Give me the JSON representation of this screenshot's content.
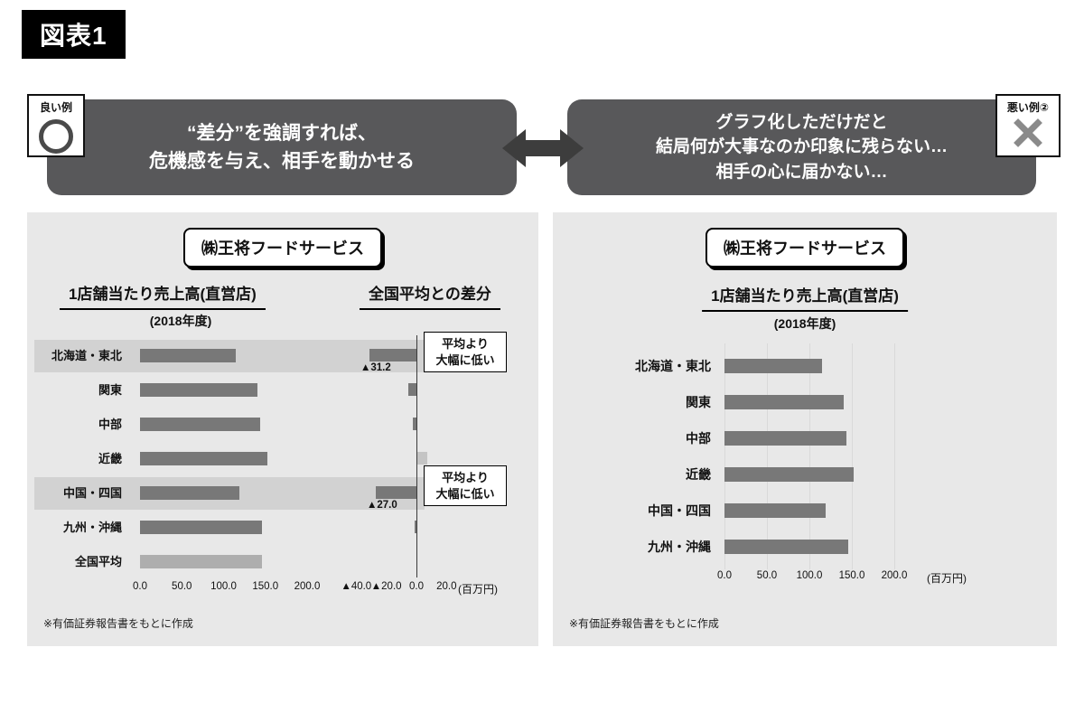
{
  "figure_label": "図表1",
  "colors": {
    "bubble_bg": "#58585a",
    "panel_bg": "#e8e8e8",
    "bar_dark": "#787878",
    "bar_light": "#aeaeae",
    "diff_positive_bar": "#c4c4c4",
    "highlight_band": "#d2d2d2",
    "arrow": "#3d3d3d"
  },
  "good_example": {
    "badge_label": "良い例",
    "icon": "circle-icon",
    "lines": [
      "“差分”を強調すれば、",
      "危機感を与え、相手を動かせる"
    ]
  },
  "bad_example": {
    "badge_label": "悪い例②",
    "icon": "x-icon",
    "lines": [
      "グラフ化しただけだと",
      "結局何が大事なのか印象に残らない…",
      "相手の心に届かない…"
    ]
  },
  "left_panel": {
    "company": "㈱王将フードサービス",
    "sales_title": "1店舗当たり売上高(直営店)",
    "sales_subtitle": "(2018年度)",
    "diff_title": "全国平均との差分",
    "callout_top": "平均より\n大幅に低い",
    "callout_bottom": "平均より\n大幅に低い",
    "footnote": "※有価証券報告書をもとに作成"
  },
  "right_panel": {
    "company": "㈱王将フードサービス",
    "sales_title": "1店舗当たり売上高(直営店)",
    "sales_subtitle": "(2018年度)",
    "footnote": "※有価証券報告書をもとに作成"
  },
  "chart_data": [
    {
      "id": "left-sales-per-store",
      "type": "bar",
      "orientation": "horizontal",
      "title": "1店舗当たり売上高(直営店) (2018年度)",
      "categories": [
        "北海道・東北",
        "関東",
        "中部",
        "近畿",
        "中国・四国",
        "九州・沖縄",
        "全国平均"
      ],
      "values": [
        114.8,
        140.5,
        143.5,
        152.5,
        119.0,
        145.5,
        146.0
      ],
      "xlim": [
        0,
        200
      ],
      "ticks": [
        "0.0",
        "50.0",
        "100.0",
        "150.0",
        "200.0"
      ],
      "highlight_rows": [
        0,
        4
      ],
      "light_rows": [
        6
      ],
      "legend": "none",
      "grid": false
    },
    {
      "id": "left-diff-from-national-average",
      "type": "bar",
      "orientation": "horizontal",
      "title": "全国平均との差分",
      "categories": [
        "北海道・東北",
        "関東",
        "中部",
        "近畿",
        "中国・四国",
        "九州・沖縄",
        "全国平均"
      ],
      "values": [
        -31.2,
        -5.5,
        -2.5,
        6.5,
        -27.0,
        -1.5,
        null
      ],
      "labels": [
        "▲31.2",
        "",
        "",
        "",
        "▲27.0",
        "",
        ""
      ],
      "xlim": [
        -45,
        27
      ],
      "ticks": [
        {
          "v": -40,
          "label": "▲40.0"
        },
        {
          "v": -20,
          "label": "▲20.0"
        },
        {
          "v": 0,
          "label": "0.0"
        },
        {
          "v": 20,
          "label": "20.0"
        }
      ],
      "unit": "(百万円)",
      "grid": false
    },
    {
      "id": "right-sales-per-store",
      "type": "bar",
      "orientation": "horizontal",
      "title": "1店舗当たり売上高(直営店) (2018年度)",
      "categories": [
        "北海道・東北",
        "関東",
        "中部",
        "近畿",
        "中国・四国",
        "九州・沖縄"
      ],
      "values": [
        114.8,
        140.5,
        143.5,
        152.5,
        119.0,
        145.5
      ],
      "xlim": [
        0,
        200
      ],
      "ticks": [
        "0.0",
        "50.0",
        "100.0",
        "150.0",
        "200.0"
      ],
      "unit": "(百万円)",
      "grid": true
    }
  ]
}
